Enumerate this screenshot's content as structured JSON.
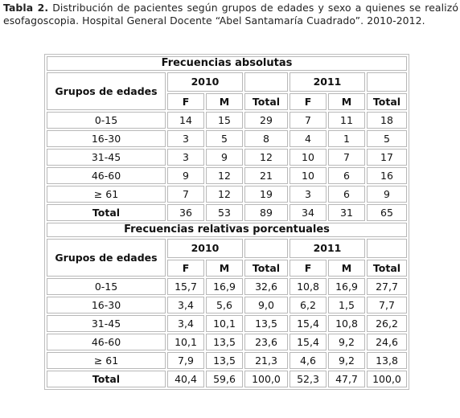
{
  "caption": {
    "label": "Tabla 2.",
    "text": " Distribución de pacientes según grupos de edades y sexo a quienes se realizó esofagoscopia. Hospital General Docente “Abel Santamaría Cuadrado”. 2010-2012."
  },
  "table": {
    "group_header": "Grupos de edades",
    "years": [
      "2010",
      "2011"
    ],
    "subheaders": [
      "F",
      "M",
      "Total",
      "F",
      "M",
      "Total"
    ],
    "sections": [
      {
        "title": "Frecuencias absolutas",
        "rows": [
          {
            "label": "0-15",
            "values": [
              "14",
              "15",
              "29",
              "7",
              "11",
              "18"
            ]
          },
          {
            "label": "16-30",
            "values": [
              "3",
              "5",
              "8",
              "4",
              "1",
              "5"
            ]
          },
          {
            "label": "31-45",
            "values": [
              "3",
              "9",
              "12",
              "10",
              "7",
              "17"
            ]
          },
          {
            "label": "46-60",
            "values": [
              "9",
              "12",
              "21",
              "10",
              "6",
              "16"
            ]
          },
          {
            "label": "≥ 61",
            "values": [
              "7",
              "12",
              "19",
              "3",
              "6",
              "9"
            ]
          },
          {
            "label": "Total",
            "values": [
              "36",
              "53",
              "89",
              "34",
              "31",
              "65"
            ]
          }
        ]
      },
      {
        "title": "Frecuencias relativas porcentuales",
        "rows": [
          {
            "label": "0-15",
            "values": [
              "15,7",
              "16,9",
              "32,6",
              "10,8",
              "16,9",
              "27,7"
            ]
          },
          {
            "label": "16-30",
            "values": [
              "3,4",
              "5,6",
              "9,0",
              "6,2",
              "1,5",
              "7,7"
            ]
          },
          {
            "label": "31-45",
            "values": [
              "3,4",
              "10,1",
              "13,5",
              "15,4",
              "10,8",
              "26,2"
            ]
          },
          {
            "label": "46-60",
            "values": [
              "10,1",
              "13,5",
              "23,6",
              "15,4",
              "9,2",
              "24,6"
            ]
          },
          {
            "label": "≥ 61",
            "values": [
              "7,9",
              "13,5",
              "21,3",
              "4,6",
              "9,2",
              "13,8"
            ]
          },
          {
            "label": "Total",
            "values": [
              "40,4",
              "59,6",
              "100,0",
              "52,3",
              "47,7",
              "100,0"
            ]
          }
        ]
      }
    ]
  }
}
